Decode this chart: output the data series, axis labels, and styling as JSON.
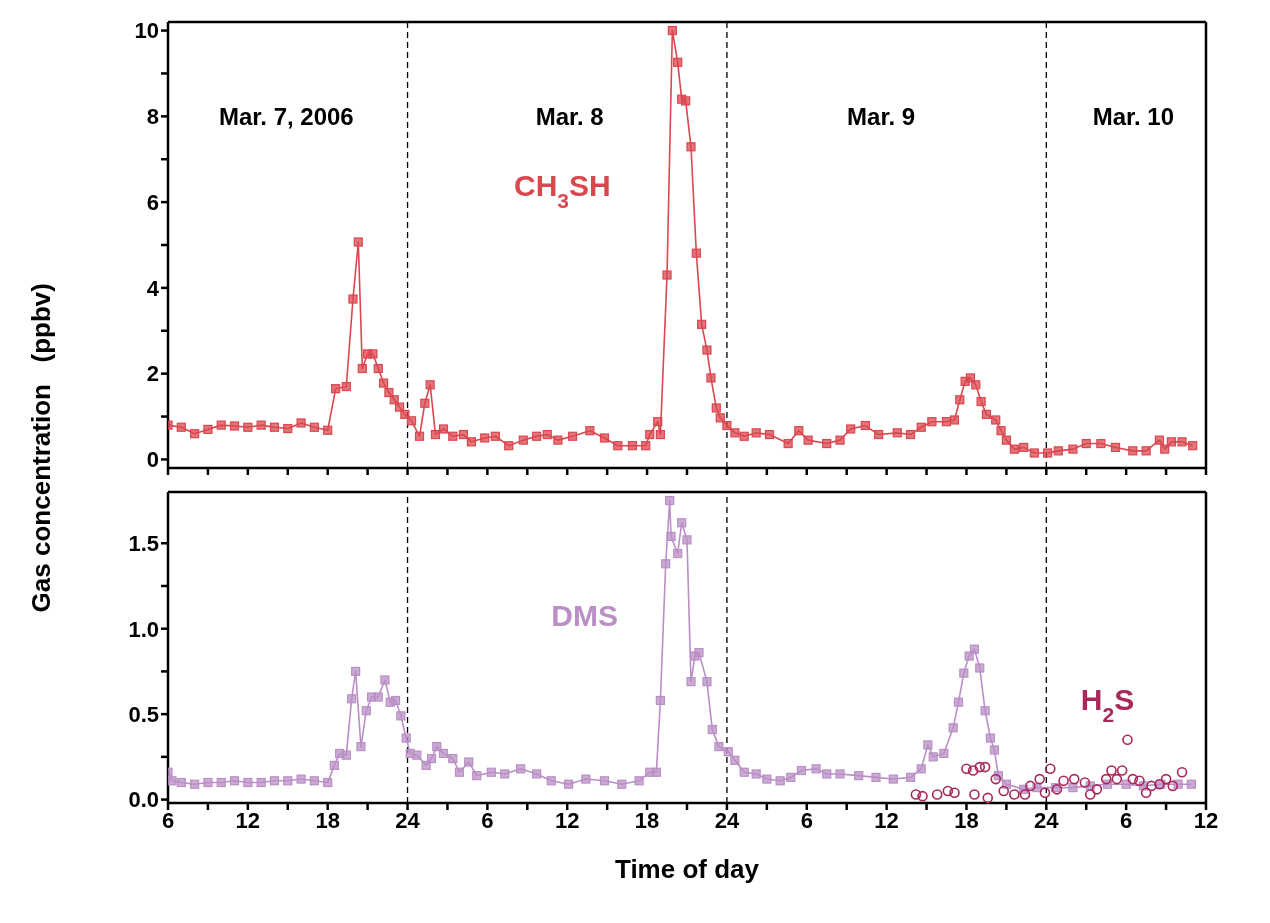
{
  "chart_data": [
    {
      "type": "line",
      "ylabel": "Gas concentration   (ppbv)",
      "xlim": [
        "2006-03-07T06:00",
        "2006-03-10T12:00"
      ],
      "ylim": [
        -0.2,
        10.2
      ],
      "tick_labels": "y",
      "marker": "square",
      "line_style": "solid",
      "xticks": [
        {
          "value": "2006-03-07T06:00",
          "label": null
        },
        {
          "value": "2006-03-07T09:00",
          "label": null
        },
        {
          "value": "2006-03-07T12:00",
          "label": null
        },
        {
          "value": "2006-03-07T15:00",
          "label": null
        },
        {
          "value": "2006-03-07T18:00",
          "label": null
        },
        {
          "value": "2006-03-07T21:00",
          "label": null
        },
        {
          "value": "2006-03-08T00:00",
          "label": null
        },
        {
          "value": "2006-03-08T03:00",
          "label": null
        },
        {
          "value": "2006-03-08T06:00",
          "label": null
        },
        {
          "value": "2006-03-08T09:00",
          "label": null
        },
        {
          "value": "2006-03-08T12:00",
          "label": null
        },
        {
          "value": "2006-03-08T15:00",
          "label": null
        },
        {
          "value": "2006-03-08T18:00",
          "label": null
        },
        {
          "value": "2006-03-08T21:00",
          "label": null
        },
        {
          "value": "2006-03-09T00:00",
          "label": null
        },
        {
          "value": "2006-03-09T03:00",
          "label": null
        },
        {
          "value": "2006-03-09T06:00",
          "label": null
        },
        {
          "value": "2006-03-09T09:00",
          "label": null
        },
        {
          "value": "2006-03-09T12:00",
          "label": null
        },
        {
          "value": "2006-03-09T15:00",
          "label": null
        },
        {
          "value": "2006-03-09T18:00",
          "label": null
        },
        {
          "value": "2006-03-09T21:00",
          "label": null
        },
        {
          "value": "2006-03-10T00:00",
          "label": null
        },
        {
          "value": "2006-03-10T03:00",
          "label": null
        },
        {
          "value": "2006-03-10T06:00",
          "label": null
        },
        {
          "value": "2006-03-10T09:00",
          "label": null
        },
        {
          "value": "2006-03-10T12:00",
          "label": null
        }
      ],
      "yticks": [
        0,
        {
          "value": 1,
          "label": null
        },
        2,
        {
          "value": 3,
          "label": null
        },
        4,
        {
          "value": 5,
          "label": null
        },
        6,
        {
          "value": 7,
          "label": null
        },
        8,
        {
          "value": 9,
          "label": null
        },
        10
      ],
      "ref_lines": [
        {
          "axis": "x",
          "value": "2006-03-08T00:00",
          "line_style": "dashed",
          "color": "#000000"
        },
        {
          "axis": "x",
          "value": "2006-03-09T00:00",
          "line_style": "dashed",
          "color": "#000000"
        },
        {
          "axis": "x",
          "value": "2006-03-10T00:00",
          "line_style": "dashed",
          "color": "#000000"
        }
      ],
      "annotations": [
        "Mar. 7, 2006",
        "Mar. 8",
        "Mar. 9",
        "Mar. 10"
      ],
      "series": [
        {
          "name": "CH$_{3}$SH",
          "color": "#d9474f",
          "x": [
            "2006-03-07T06:00",
            "2006-03-07T07:00",
            "2006-03-07T08:00",
            "2006-03-07T09:00",
            "2006-03-07T10:00",
            "2006-03-07T11:00",
            "2006-03-07T12:00",
            "2006-03-07T13:00",
            "2006-03-07T14:00",
            "2006-03-07T15:00",
            "2006-03-07T16:00",
            "2006-03-07T17:00",
            "2006-03-07T18:00",
            "2006-03-07T18:36",
            "2006-03-07T19:24",
            "2006-03-07T19:54",
            "2006-03-07T20:18",
            "2006-03-07T20:36",
            "2006-03-07T21:00",
            "2006-03-07T21:24",
            "2006-03-07T21:48",
            "2006-03-07T22:12",
            "2006-03-07T22:36",
            "2006-03-07T23:00",
            "2006-03-07T23:24",
            "2006-03-07T23:48",
            "2006-03-08T00:18",
            "2006-03-08T00:54",
            "2006-03-08T01:18",
            "2006-03-08T01:42",
            "2006-03-08T02:06",
            "2006-03-08T02:42",
            "2006-03-08T03:24",
            "2006-03-08T04:12",
            "2006-03-08T04:48",
            "2006-03-08T05:48",
            "2006-03-08T06:36",
            "2006-03-08T07:36",
            "2006-03-08T08:42",
            "2006-03-08T09:42",
            "2006-03-08T10:30",
            "2006-03-08T11:18",
            "2006-03-08T12:24",
            "2006-03-08T13:42",
            "2006-03-08T14:48",
            "2006-03-08T15:48",
            "2006-03-08T16:54",
            "2006-03-08T17:54",
            "2006-03-08T18:12",
            "2006-03-08T18:48",
            "2006-03-08T19:00",
            "2006-03-08T19:30",
            "2006-03-08T19:54",
            "2006-03-08T20:18",
            "2006-03-08T20:36",
            "2006-03-08T20:54",
            "2006-03-08T21:18",
            "2006-03-08T21:42",
            "2006-03-08T22:06",
            "2006-03-08T22:30",
            "2006-03-08T22:48",
            "2006-03-08T23:12",
            "2006-03-08T23:30",
            "2006-03-09T00:00",
            "2006-03-09T00:36",
            "2006-03-09T01:18",
            "2006-03-09T02:12",
            "2006-03-09T03:12",
            "2006-03-09T04:36",
            "2006-03-09T05:24",
            "2006-03-09T06:06",
            "2006-03-09T07:30",
            "2006-03-09T08:30",
            "2006-03-09T09:18",
            "2006-03-09T10:24",
            "2006-03-09T11:24",
            "2006-03-09T12:48",
            "2006-03-09T13:48",
            "2006-03-09T14:36",
            "2006-03-09T15:24",
            "2006-03-09T16:30",
            "2006-03-09T17:06",
            "2006-03-09T17:30",
            "2006-03-09T17:54",
            "2006-03-09T18:18",
            "2006-03-09T18:42",
            "2006-03-09T19:06",
            "2006-03-09T19:30",
            "2006-03-09T20:12",
            "2006-03-09T20:36",
            "2006-03-09T21:00",
            "2006-03-09T21:36",
            "2006-03-09T22:18",
            "2006-03-09T23:06",
            "2006-03-10T00:06",
            "2006-03-10T00:54",
            "2006-03-10T02:00",
            "2006-03-10T03:00",
            "2006-03-10T04:06",
            "2006-03-10T05:12",
            "2006-03-10T06:30",
            "2006-03-10T07:30",
            "2006-03-10T08:30",
            "2006-03-10T08:54",
            "2006-03-10T09:24",
            "2006-03-10T10:12",
            "2006-03-10T11:00"
          ],
          "values": [
            0.8,
            0.75,
            0.6,
            0.7,
            0.8,
            0.78,
            0.75,
            0.8,
            0.75,
            0.72,
            0.85,
            0.75,
            0.68,
            1.65,
            1.7,
            3.74,
            5.07,
            2.12,
            2.46,
            2.46,
            2.12,
            1.78,
            1.56,
            1.39,
            1.22,
            1.05,
            0.9,
            0.54,
            1.31,
            1.74,
            0.58,
            0.71,
            0.54,
            0.58,
            0.41,
            0.5,
            0.54,
            0.32,
            0.45,
            0.54,
            0.58,
            0.45,
            0.54,
            0.67,
            0.5,
            0.32,
            0.32,
            0.32,
            0.58,
            0.88,
            0.58,
            4.3,
            10.0,
            9.26,
            8.4,
            8.36,
            7.29,
            4.81,
            3.15,
            2.55,
            1.9,
            1.2,
            0.97,
            0.79,
            0.62,
            0.54,
            0.62,
            0.58,
            0.37,
            0.67,
            0.45,
            0.37,
            0.45,
            0.71,
            0.79,
            0.58,
            0.62,
            0.58,
            0.75,
            0.88,
            0.88,
            0.92,
            1.39,
            1.82,
            1.9,
            1.74,
            1.35,
            1.05,
            0.92,
            0.67,
            0.45,
            0.24,
            0.28,
            0.15,
            0.15,
            0.2,
            0.24,
            0.37,
            0.37,
            0.28,
            0.2,
            0.2,
            0.45,
            0.24,
            0.41,
            0.41,
            0.32
          ]
        }
      ]
    },
    {
      "type": "line",
      "xlabel": "Time of day",
      "xlim": [
        "2006-03-07T06:00",
        "2006-03-10T12:00"
      ],
      "ylim": [
        -0.02,
        1.8
      ],
      "marker": "square",
      "line_style": "solid",
      "xticks": [
        {
          "value": "2006-03-07T06:00",
          "label": "6"
        },
        {
          "value": "2006-03-07T09:00",
          "label": null
        },
        {
          "value": "2006-03-07T12:00",
          "label": "12"
        },
        {
          "value": "2006-03-07T15:00",
          "label": null
        },
        {
          "value": "2006-03-07T18:00",
          "label": "18"
        },
        {
          "value": "2006-03-07T21:00",
          "label": null
        },
        {
          "value": "2006-03-08T00:00",
          "label": "24"
        },
        {
          "value": "2006-03-08T03:00",
          "label": null
        },
        {
          "value": "2006-03-08T06:00",
          "label": "6"
        },
        {
          "value": "2006-03-08T09:00",
          "label": null
        },
        {
          "value": "2006-03-08T12:00",
          "label": "12"
        },
        {
          "value": "2006-03-08T15:00",
          "label": null
        },
        {
          "value": "2006-03-08T18:00",
          "label": "18"
        },
        {
          "value": "2006-03-08T21:00",
          "label": null
        },
        {
          "value": "2006-03-09T00:00",
          "label": "24"
        },
        {
          "value": "2006-03-09T03:00",
          "label": null
        },
        {
          "value": "2006-03-09T06:00",
          "label": "6"
        },
        {
          "value": "2006-03-09T09:00",
          "label": null
        },
        {
          "value": "2006-03-09T12:00",
          "label": "12"
        },
        {
          "value": "2006-03-09T15:00",
          "label": null
        },
        {
          "value": "2006-03-09T18:00",
          "label": "18"
        },
        {
          "value": "2006-03-09T21:00",
          "label": null
        },
        {
          "value": "2006-03-10T00:00",
          "label": "24"
        },
        {
          "value": "2006-03-10T03:00",
          "label": null
        },
        {
          "value": "2006-03-10T06:00",
          "label": "6"
        },
        {
          "value": "2006-03-10T09:00",
          "label": null
        },
        {
          "value": "2006-03-10T12:00",
          "label": "12"
        }
      ],
      "yticks": [
        {
          "value": 0,
          "label": "0.0"
        },
        {
          "value": 0.25,
          "label": null
        },
        {
          "value": 0.5,
          "label": "0.5"
        },
        {
          "value": 0.75,
          "label": null
        },
        {
          "value": 1,
          "label": "1.0"
        },
        {
          "value": 1.25,
          "label": null
        },
        {
          "value": 1.5,
          "label": "1.5"
        }
      ],
      "ref_lines": [
        {
          "axis": "x",
          "value": "2006-03-08T00:00",
          "line_style": "dashed",
          "color": "#000000"
        },
        {
          "axis": "x",
          "value": "2006-03-09T00:00",
          "line_style": "dashed",
          "color": "#000000"
        },
        {
          "axis": "x",
          "value": "2006-03-10T00:00",
          "line_style": "dashed",
          "color": "#000000"
        }
      ],
      "series": [
        {
          "name": "DMS",
          "color": "#b98fc6",
          "x": [
            "2006-03-07T06:00",
            "2006-03-07T06:18",
            "2006-03-07T07:00",
            "2006-03-07T08:00",
            "2006-03-07T09:00",
            "2006-03-07T10:00",
            "2006-03-07T11:00",
            "2006-03-07T12:00",
            "2006-03-07T13:00",
            "2006-03-07T14:00",
            "2006-03-07T15:00",
            "2006-03-07T16:00",
            "2006-03-07T17:00",
            "2006-03-07T18:00",
            "2006-03-07T18:30",
            "2006-03-07T18:54",
            "2006-03-07T19:24",
            "2006-03-07T19:48",
            "2006-03-07T20:06",
            "2006-03-07T20:30",
            "2006-03-07T20:54",
            "2006-03-07T21:18",
            "2006-03-07T21:48",
            "2006-03-07T22:18",
            "2006-03-07T22:42",
            "2006-03-07T23:06",
            "2006-03-07T23:30",
            "2006-03-07T23:54",
            "2006-03-08T00:12",
            "2006-03-08T00:42",
            "2006-03-08T01:24",
            "2006-03-08T01:48",
            "2006-03-08T02:12",
            "2006-03-08T02:42",
            "2006-03-08T03:24",
            "2006-03-08T03:54",
            "2006-03-08T04:36",
            "2006-03-08T05:12",
            "2006-03-08T06:18",
            "2006-03-08T07:18",
            "2006-03-08T08:30",
            "2006-03-08T09:42",
            "2006-03-08T10:48",
            "2006-03-08T12:06",
            "2006-03-08T13:24",
            "2006-03-08T14:48",
            "2006-03-08T16:06",
            "2006-03-08T17:24",
            "2006-03-08T18:12",
            "2006-03-08T18:42",
            "2006-03-08T19:00",
            "2006-03-08T19:24",
            "2006-03-08T19:42",
            "2006-03-08T19:48",
            "2006-03-08T20:18",
            "2006-03-08T20:36",
            "2006-03-08T21:00",
            "2006-03-08T21:18",
            "2006-03-08T21:36",
            "2006-03-08T21:54",
            "2006-03-08T22:30",
            "2006-03-08T22:54",
            "2006-03-08T23:24",
            "2006-03-09T00:06",
            "2006-03-09T00:36",
            "2006-03-09T01:18",
            "2006-03-09T02:12",
            "2006-03-09T03:00",
            "2006-03-09T04:00",
            "2006-03-09T04:48",
            "2006-03-09T05:36",
            "2006-03-09T06:42",
            "2006-03-09T07:30",
            "2006-03-09T08:30",
            "2006-03-09T09:54",
            "2006-03-09T11:12",
            "2006-03-09T12:30",
            "2006-03-09T13:48",
            "2006-03-09T14:36",
            "2006-03-09T15:06",
            "2006-03-09T15:30",
            "2006-03-09T16:18",
            "2006-03-09T17:00",
            "2006-03-09T17:24",
            "2006-03-09T17:48",
            "2006-03-09T18:12",
            "2006-03-09T18:36",
            "2006-03-09T19:00",
            "2006-03-09T19:24",
            "2006-03-09T19:48",
            "2006-03-09T20:06",
            "2006-03-09T20:24",
            "2006-03-09T21:00",
            "2006-03-09T22:18",
            "2006-03-09T23:18",
            "2006-03-10T00:42",
            "2006-03-10T02:00",
            "2006-03-10T03:18",
            "2006-03-10T04:36",
            "2006-03-10T06:00",
            "2006-03-10T07:18",
            "2006-03-10T08:36",
            "2006-03-10T09:54",
            "2006-03-10T10:54"
          ],
          "values": [
            0.16,
            0.11,
            0.1,
            0.09,
            0.1,
            0.1,
            0.11,
            0.1,
            0.1,
            0.11,
            0.11,
            0.12,
            0.11,
            0.1,
            0.2,
            0.27,
            0.26,
            0.59,
            0.75,
            0.31,
            0.52,
            0.6,
            0.6,
            0.7,
            0.57,
            0.58,
            0.49,
            0.36,
            0.27,
            0.26,
            0.2,
            0.24,
            0.31,
            0.27,
            0.24,
            0.16,
            0.22,
            0.14,
            0.16,
            0.15,
            0.18,
            0.15,
            0.11,
            0.09,
            0.12,
            0.11,
            0.09,
            0.11,
            0.16,
            0.16,
            0.58,
            1.38,
            1.75,
            1.54,
            1.44,
            1.62,
            1.52,
            0.69,
            0.84,
            0.86,
            0.69,
            0.41,
            0.31,
            0.28,
            0.23,
            0.16,
            0.15,
            0.12,
            0.11,
            0.13,
            0.17,
            0.18,
            0.15,
            0.15,
            0.14,
            0.13,
            0.12,
            0.13,
            0.18,
            0.32,
            0.25,
            0.27,
            0.42,
            0.57,
            0.74,
            0.84,
            0.88,
            0.77,
            0.52,
            0.36,
            0.29,
            0.14,
            0.09,
            0.06,
            0.07,
            0.07,
            0.07,
            0.08,
            0.09,
            0.09,
            0.08,
            0.09,
            0.09,
            0.09
          ]
        },
        {
          "name": "H$_{2}$S",
          "type": "scatter",
          "marker": "circle",
          "color": "#a8285a",
          "x": [
            "2006-03-09T14:12",
            "2006-03-09T14:42",
            "2006-03-09T15:48",
            "2006-03-09T16:36",
            "2006-03-09T17:06",
            "2006-03-09T18:00",
            "2006-03-09T18:30",
            "2006-03-09T18:36",
            "2006-03-09T19:00",
            "2006-03-09T19:24",
            "2006-03-09T19:36",
            "2006-03-09T20:12",
            "2006-03-09T20:48",
            "2006-03-09T21:36",
            "2006-03-09T22:24",
            "2006-03-09T22:48",
            "2006-03-09T23:30",
            "2006-03-09T23:54",
            "2006-03-10T00:18",
            "2006-03-10T00:48",
            "2006-03-10T01:18",
            "2006-03-10T02:06",
            "2006-03-10T02:54",
            "2006-03-10T03:18",
            "2006-03-10T03:48",
            "2006-03-10T04:30",
            "2006-03-10T04:54",
            "2006-03-10T05:18",
            "2006-03-10T05:42",
            "2006-03-10T06:06",
            "2006-03-10T06:30",
            "2006-03-10T07:00",
            "2006-03-10T07:30",
            "2006-03-10T07:54",
            "2006-03-10T08:30",
            "2006-03-10T09:00",
            "2006-03-10T09:30",
            "2006-03-10T10:12"
          ],
          "values": [
            0.03,
            0.02,
            0.03,
            0.05,
            0.04,
            0.18,
            0.17,
            0.03,
            0.19,
            0.19,
            0.01,
            0.12,
            0.05,
            0.03,
            0.03,
            0.08,
            0.12,
            0.04,
            0.18,
            0.06,
            0.11,
            0.12,
            0.1,
            0.03,
            0.06,
            0.12,
            0.17,
            0.12,
            0.17,
            0.35,
            0.12,
            0.11,
            0.04,
            0.08,
            0.09,
            0.12,
            0.08,
            0.16
          ]
        }
      ]
    }
  ]
}
